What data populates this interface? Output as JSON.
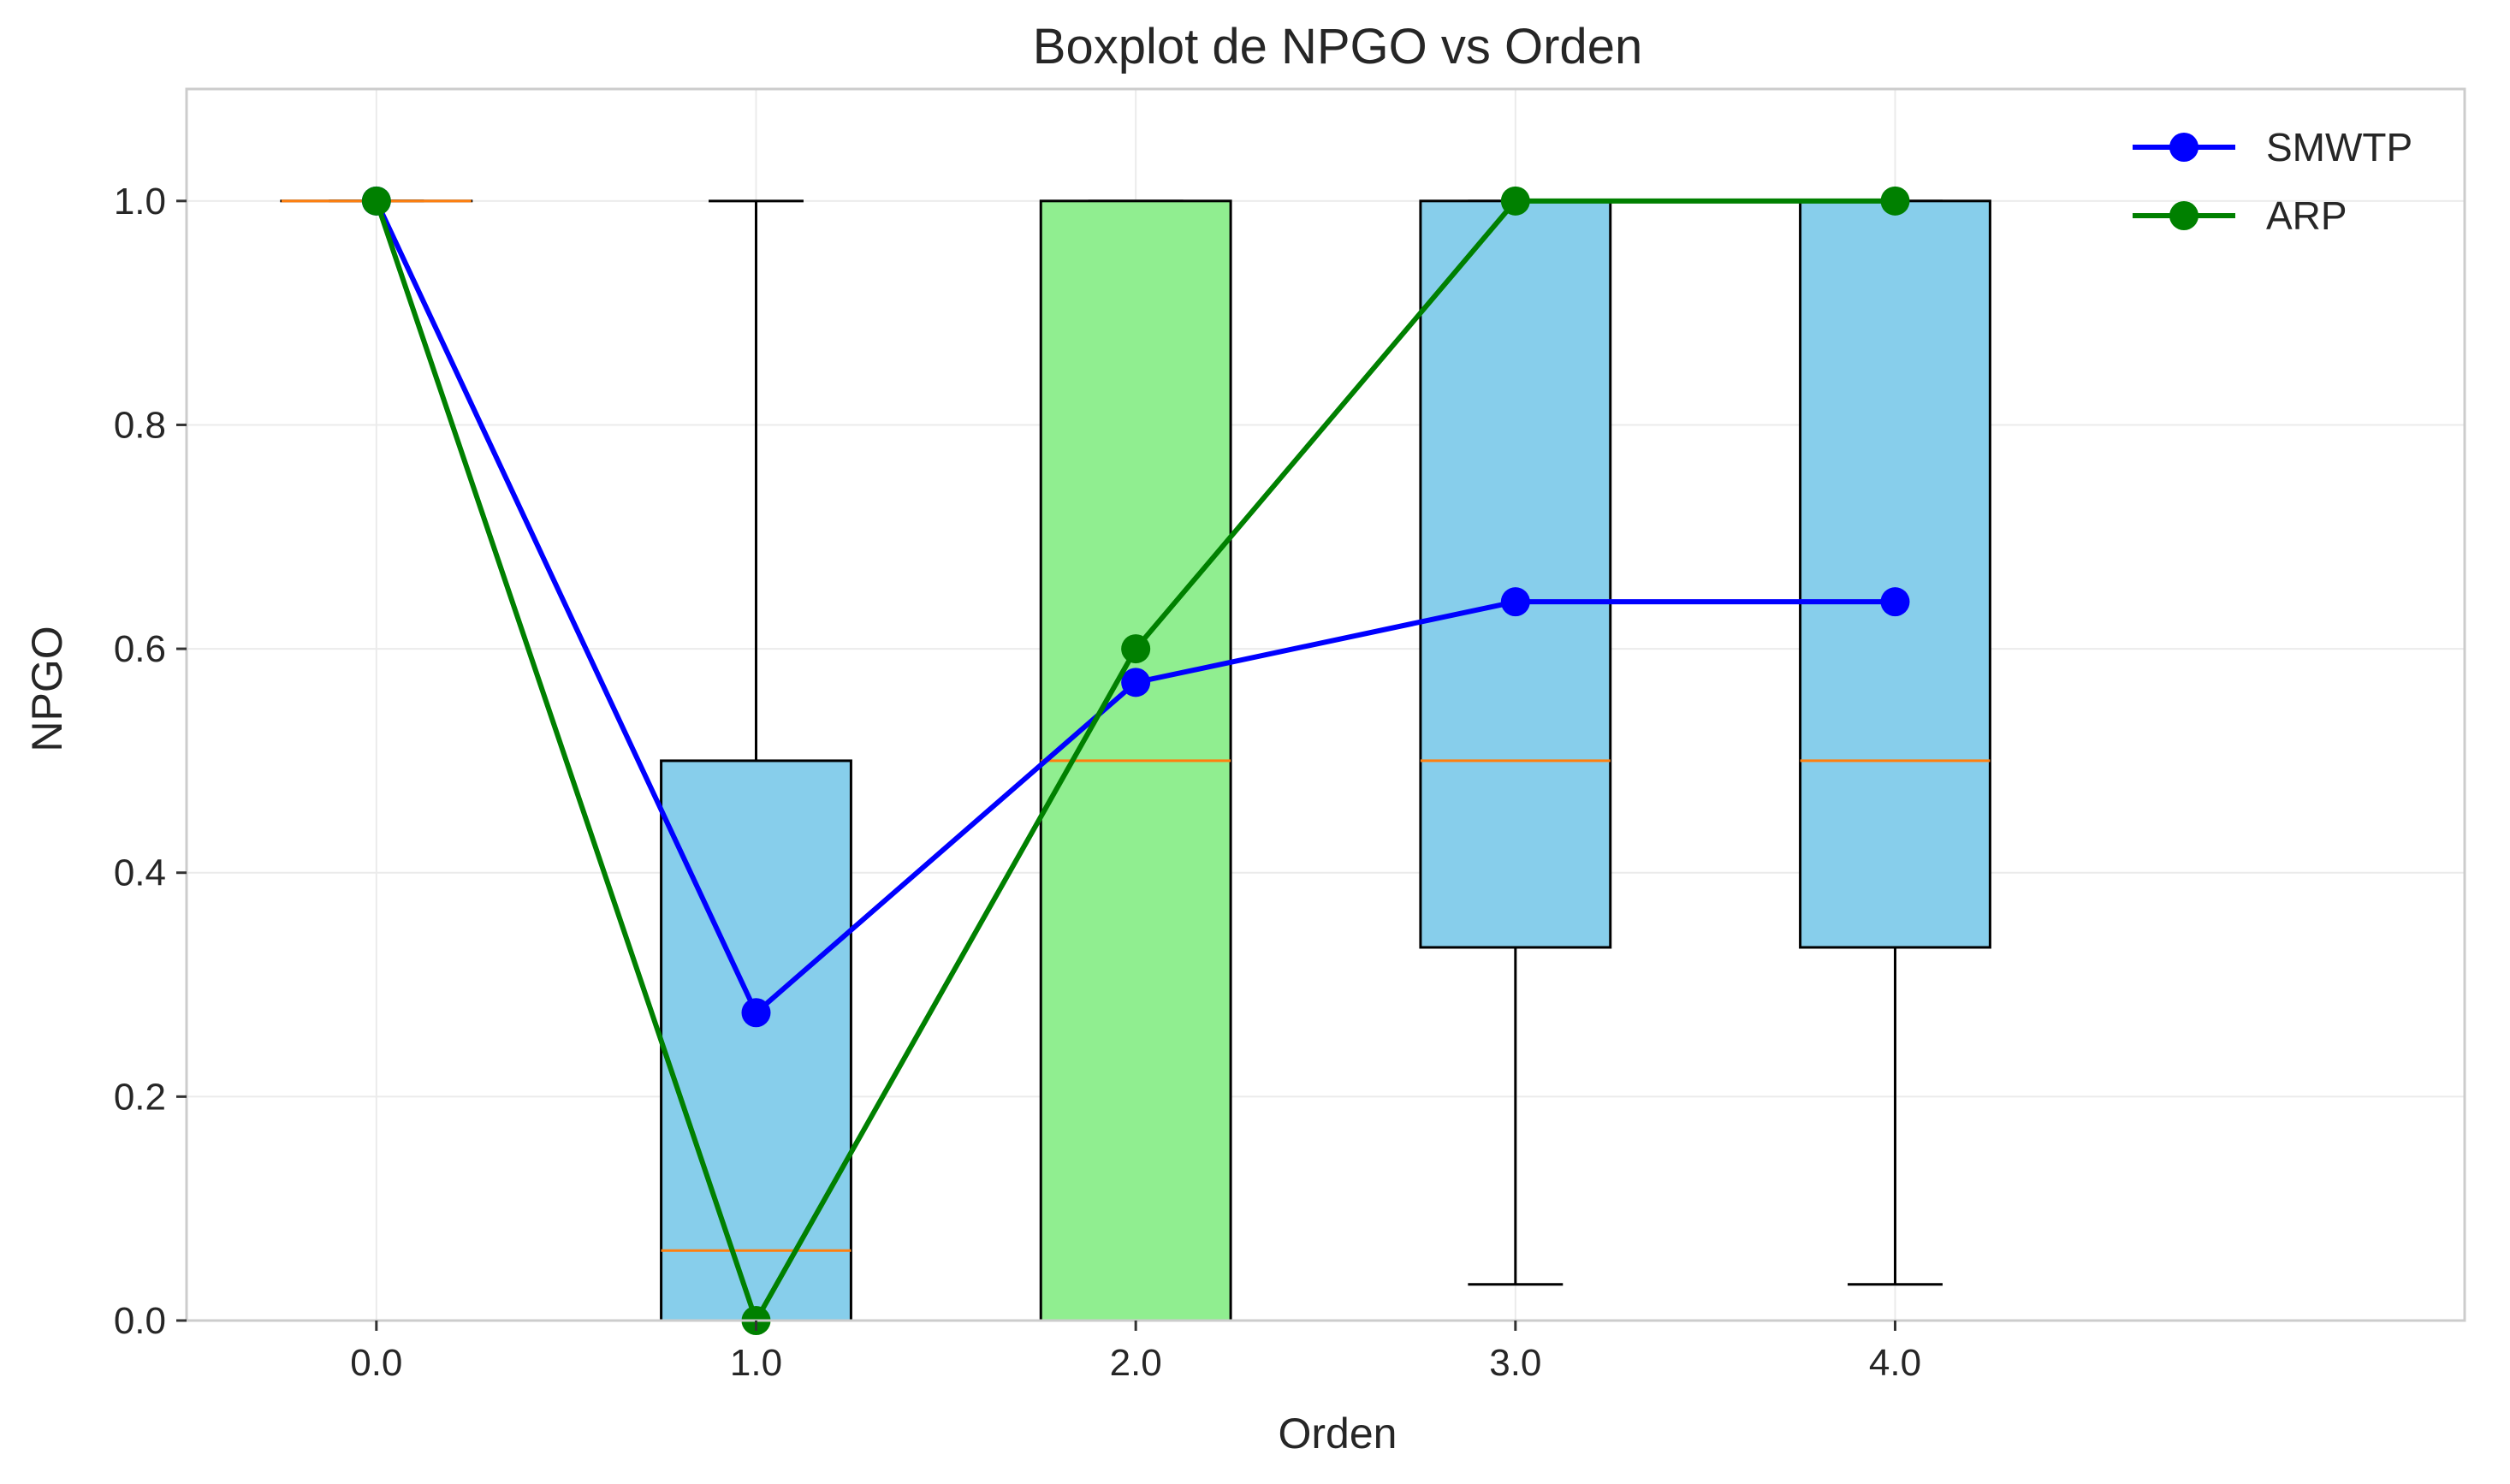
{
  "chart_data": {
    "type": "boxplot",
    "title": "Boxplot de NPGO vs Orden",
    "xlabel": "Orden",
    "ylabel": "NPGO",
    "xlim": [
      -0.5,
      5.5
    ],
    "ylim": [
      0.0,
      1.1
    ],
    "x_ticks": [
      "0.0",
      "1.0",
      "2.0",
      "3.0",
      "4.0"
    ],
    "y_ticks": [
      "0.0",
      "0.2",
      "0.4",
      "0.6",
      "0.8",
      "1.0"
    ],
    "grid": true,
    "legend_position": "top-right",
    "boxes": [
      {
        "x": 0,
        "whisker_low": 1.0,
        "q1": 1.0,
        "median": 1.0,
        "q3": 1.0,
        "whisker_high": 1.0,
        "fill": "#87ceeb"
      },
      {
        "x": 1,
        "whisker_low": 0.0,
        "q1": 0.0,
        "median": 0.0625,
        "q3": 0.5,
        "whisker_high": 1.0,
        "fill": "#87ceeb"
      },
      {
        "x": 2,
        "whisker_low": 0.0,
        "q1": 0.0,
        "median": 0.5,
        "q3": 1.0,
        "whisker_high": 1.0,
        "fill": "#90ee90"
      },
      {
        "x": 3,
        "whisker_low": 0.0323,
        "q1": 0.3333,
        "median": 0.5,
        "q3": 1.0,
        "whisker_high": 1.0,
        "fill": "#87ceeb"
      },
      {
        "x": 4,
        "whisker_low": 0.0323,
        "q1": 0.3333,
        "median": 0.5,
        "q3": 1.0,
        "whisker_high": 1.0,
        "fill": "#87ceeb"
      }
    ],
    "median_color": "#ff7f0e",
    "series": [
      {
        "name": "SMWTP",
        "color": "#0000ff",
        "x": [
          0,
          1,
          2,
          3,
          4
        ],
        "values": [
          1.0,
          0.275,
          0.57,
          0.642,
          0.642
        ]
      },
      {
        "name": "ARP",
        "color": "#008000",
        "x": [
          0,
          1,
          2,
          3,
          4
        ],
        "values": [
          1.0,
          0.0,
          0.6,
          1.0,
          1.0
        ]
      }
    ]
  }
}
